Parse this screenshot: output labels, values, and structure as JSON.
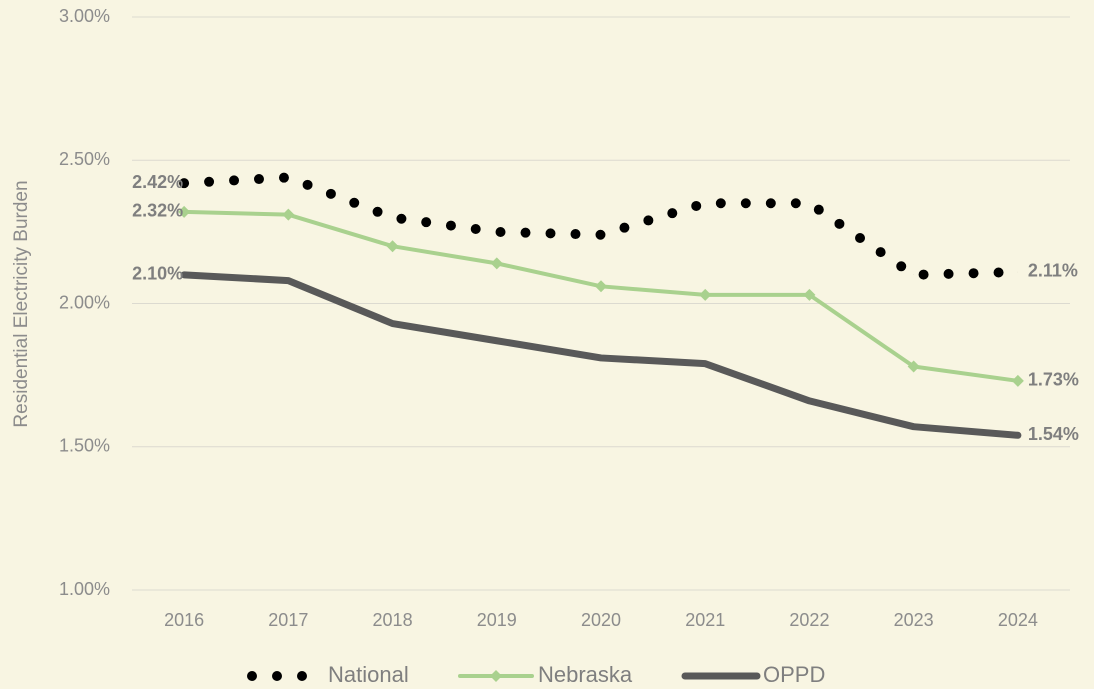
{
  "chart_data": {
    "type": "line",
    "y_label": "Residential Electricity Burden",
    "categories": [
      "2016",
      "2017",
      "2018",
      "2019",
      "2020",
      "2021",
      "2022",
      "2023",
      "2024"
    ],
    "series": [
      {
        "name": "National",
        "color": "#000000",
        "style": "dotted",
        "values": [
          2.42,
          2.44,
          2.3,
          2.25,
          2.24,
          2.35,
          2.35,
          2.1,
          2.11
        ],
        "value_labels": [
          "2.42%",
          null,
          null,
          null,
          null,
          null,
          null,
          null,
          "2.11%"
        ]
      },
      {
        "name": "Nebraska",
        "color": "#a9d18e",
        "style": "diamond",
        "values": [
          2.32,
          2.31,
          2.2,
          2.14,
          2.06,
          2.03,
          2.03,
          1.78,
          1.73
        ],
        "value_labels": [
          "2.32%",
          null,
          null,
          null,
          null,
          null,
          null,
          null,
          "1.73%"
        ]
      },
      {
        "name": "OPPD",
        "color": "#595959",
        "style": "thick",
        "values": [
          2.1,
          2.08,
          1.93,
          1.87,
          1.81,
          1.79,
          1.66,
          1.57,
          1.54
        ],
        "value_labels": [
          "2.10%",
          null,
          null,
          null,
          null,
          null,
          null,
          null,
          "1.54%"
        ]
      }
    ],
    "ylim": [
      1,
      3
    ],
    "yticks": [
      {
        "value": 1,
        "label": "1.00%"
      },
      {
        "value": 1.5,
        "label": "1.50%"
      },
      {
        "value": 2,
        "label": "2.00%"
      },
      {
        "value": 2.5,
        "label": "2.50%"
      },
      {
        "value": 3,
        "label": "3.00%"
      }
    ],
    "grid": true,
    "legend": "bottom"
  }
}
